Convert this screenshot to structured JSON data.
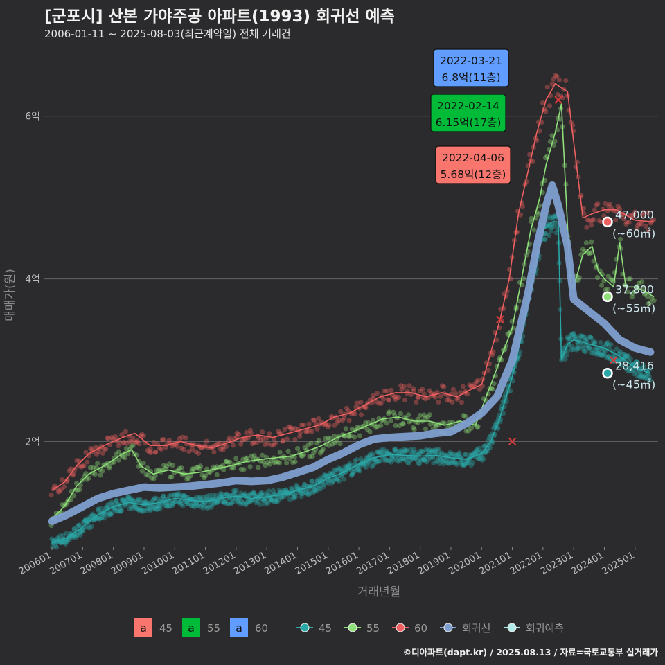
{
  "title": "[군포시] 산본 가야주공 아파트(1993) 회귀선 예측",
  "subtitle": "2006-01-11 ~ 2025-08-03(최근계약일) 전체 거래건",
  "caption": "©디아파트(dapt.kr) / 2025.08.13 / 자료=국토교통부 실거래가",
  "colors": {
    "s45": "#2aa8a8",
    "s55": "#8fe07a",
    "s60": "#f06060",
    "reg": "#7f9fd0",
    "pred": "#b0ecea",
    "box45": "#f8766d",
    "box55": "#00ba38",
    "box60": "#619cff"
  },
  "chart_data": {
    "type": "scatter",
    "xlabel": "거래년월",
    "ylabel": "매매가(원)",
    "x_tick_labels": [
      "200601",
      "200701",
      "200801",
      "200901",
      "201001",
      "201101",
      "201201",
      "201301",
      "201401",
      "201501",
      "201601",
      "201701",
      "201801",
      "201901",
      "202001",
      "202101",
      "202201",
      "202301",
      "202401",
      "202501"
    ],
    "y_ticks": [
      {
        "value": 2,
        "label": "2억"
      },
      {
        "value": 4,
        "label": "4억"
      },
      {
        "value": 6,
        "label": "6억"
      }
    ],
    "ylim": [
      0.7,
      6.9
    ],
    "xlim": [
      2005.75,
      2025.75
    ],
    "grid": "horizontal",
    "series": [
      {
        "name": "45",
        "key": "s45",
        "line": [
          [
            2006.0,
            0.75
          ],
          [
            2006.5,
            0.82
          ],
          [
            2007.0,
            0.95
          ],
          [
            2007.5,
            1.1
          ],
          [
            2008.0,
            1.2
          ],
          [
            2008.5,
            1.25
          ],
          [
            2009.0,
            1.22
          ],
          [
            2009.5,
            1.25
          ],
          [
            2010.0,
            1.3
          ],
          [
            2010.5,
            1.28
          ],
          [
            2011.0,
            1.26
          ],
          [
            2011.5,
            1.3
          ],
          [
            2012.0,
            1.33
          ],
          [
            2012.5,
            1.3
          ],
          [
            2013.0,
            1.32
          ],
          [
            2013.5,
            1.35
          ],
          [
            2014.0,
            1.4
          ],
          [
            2014.5,
            1.45
          ],
          [
            2015.0,
            1.55
          ],
          [
            2015.5,
            1.62
          ],
          [
            2016.0,
            1.72
          ],
          [
            2016.5,
            1.8
          ],
          [
            2017.0,
            1.84
          ],
          [
            2017.5,
            1.83
          ],
          [
            2018.0,
            1.82
          ],
          [
            2018.5,
            1.83
          ],
          [
            2019.0,
            1.8
          ],
          [
            2019.5,
            1.78
          ],
          [
            2020.0,
            1.85
          ],
          [
            2020.3,
            2.0
          ],
          [
            2020.6,
            2.3
          ],
          [
            2021.0,
            2.8
          ],
          [
            2021.3,
            3.3
          ],
          [
            2021.6,
            3.9
          ],
          [
            2022.0,
            4.6
          ],
          [
            2022.3,
            4.7
          ],
          [
            2022.5,
            4.7
          ],
          [
            2022.6,
            3.0
          ],
          [
            2022.8,
            3.2
          ],
          [
            2023.0,
            3.25
          ],
          [
            2023.5,
            3.2
          ],
          [
            2024.0,
            3.15
          ],
          [
            2024.5,
            3.05
          ],
          [
            2025.0,
            2.9
          ],
          [
            2025.5,
            2.84
          ]
        ]
      },
      {
        "name": "55",
        "key": "s55",
        "line": [
          [
            2006.0,
            1.05
          ],
          [
            2006.4,
            1.2
          ],
          [
            2006.8,
            1.45
          ],
          [
            2007.2,
            1.6
          ],
          [
            2007.7,
            1.7
          ],
          [
            2008.3,
            1.85
          ],
          [
            2008.6,
            1.9
          ],
          [
            2008.9,
            1.7
          ],
          [
            2009.3,
            1.6
          ],
          [
            2009.8,
            1.65
          ],
          [
            2010.3,
            1.6
          ],
          [
            2010.8,
            1.62
          ],
          [
            2011.3,
            1.66
          ],
          [
            2011.8,
            1.7
          ],
          [
            2012.3,
            1.75
          ],
          [
            2012.8,
            1.78
          ],
          [
            2013.3,
            1.8
          ],
          [
            2013.8,
            1.82
          ],
          [
            2014.3,
            1.88
          ],
          [
            2014.8,
            1.95
          ],
          [
            2015.3,
            2.05
          ],
          [
            2015.8,
            2.12
          ],
          [
            2016.3,
            2.2
          ],
          [
            2016.8,
            2.28
          ],
          [
            2017.3,
            2.3
          ],
          [
            2017.8,
            2.25
          ],
          [
            2018.3,
            2.25
          ],
          [
            2018.8,
            2.2
          ],
          [
            2019.3,
            2.25
          ],
          [
            2019.8,
            2.2
          ],
          [
            2020.2,
            2.6
          ],
          [
            2020.6,
            3.0
          ],
          [
            2021.0,
            3.4
          ],
          [
            2021.3,
            4.0
          ],
          [
            2021.6,
            4.6
          ],
          [
            2021.9,
            5.0
          ],
          [
            2022.1,
            5.4
          ],
          [
            2022.4,
            5.8
          ],
          [
            2022.6,
            6.15
          ],
          [
            2022.9,
            3.9
          ],
          [
            2023.0,
            3.9
          ],
          [
            2023.3,
            4.3
          ],
          [
            2023.6,
            4.4
          ],
          [
            2023.8,
            4.1
          ],
          [
            2024.0,
            4.0
          ],
          [
            2024.3,
            3.9
          ],
          [
            2024.5,
            4.45
          ],
          [
            2024.7,
            3.9
          ],
          [
            2025.0,
            3.9
          ],
          [
            2025.3,
            3.85
          ],
          [
            2025.6,
            3.78
          ]
        ]
      },
      {
        "name": "60",
        "key": "s60",
        "line": [
          [
            2006.0,
            1.4
          ],
          [
            2006.4,
            1.5
          ],
          [
            2006.8,
            1.7
          ],
          [
            2007.2,
            1.85
          ],
          [
            2007.7,
            1.95
          ],
          [
            2008.3,
            2.05
          ],
          [
            2008.7,
            2.1
          ],
          [
            2009.2,
            1.95
          ],
          [
            2009.7,
            1.95
          ],
          [
            2010.2,
            2.0
          ],
          [
            2010.7,
            1.95
          ],
          [
            2011.2,
            1.92
          ],
          [
            2011.7,
            1.98
          ],
          [
            2012.2,
            2.05
          ],
          [
            2012.7,
            2.08
          ],
          [
            2013.2,
            2.05
          ],
          [
            2013.7,
            2.1
          ],
          [
            2014.2,
            2.15
          ],
          [
            2014.7,
            2.2
          ],
          [
            2015.2,
            2.3
          ],
          [
            2015.7,
            2.35
          ],
          [
            2016.2,
            2.45
          ],
          [
            2016.7,
            2.55
          ],
          [
            2017.2,
            2.6
          ],
          [
            2017.7,
            2.6
          ],
          [
            2018.2,
            2.55
          ],
          [
            2018.7,
            2.6
          ],
          [
            2019.2,
            2.55
          ],
          [
            2019.7,
            2.65
          ],
          [
            2020.0,
            2.7
          ],
          [
            2020.3,
            3.1
          ],
          [
            2020.6,
            3.5
          ],
          [
            2020.9,
            4.0
          ],
          [
            2021.2,
            4.8
          ],
          [
            2021.5,
            5.3
          ],
          [
            2021.8,
            5.8
          ],
          [
            2022.1,
            6.2
          ],
          [
            2022.4,
            6.4
          ],
          [
            2022.6,
            6.35
          ],
          [
            2022.8,
            6.3
          ],
          [
            2023.3,
            4.75
          ],
          [
            2023.6,
            4.8
          ],
          [
            2024.0,
            4.85
          ],
          [
            2024.4,
            4.85
          ],
          [
            2025.0,
            4.72
          ],
          [
            2025.6,
            4.7
          ]
        ]
      },
      {
        "name": "회귀선",
        "key": "reg",
        "line": [
          [
            2006.0,
            1.02
          ],
          [
            2006.5,
            1.1
          ],
          [
            2007.0,
            1.2
          ],
          [
            2007.5,
            1.3
          ],
          [
            2008.0,
            1.36
          ],
          [
            2008.5,
            1.4
          ],
          [
            2009.0,
            1.44
          ],
          [
            2009.5,
            1.43
          ],
          [
            2010.0,
            1.44
          ],
          [
            2010.5,
            1.45
          ],
          [
            2011.0,
            1.47
          ],
          [
            2011.5,
            1.49
          ],
          [
            2012.0,
            1.52
          ],
          [
            2012.5,
            1.51
          ],
          [
            2013.0,
            1.52
          ],
          [
            2013.5,
            1.56
          ],
          [
            2014.0,
            1.62
          ],
          [
            2014.5,
            1.68
          ],
          [
            2015.0,
            1.78
          ],
          [
            2015.5,
            1.86
          ],
          [
            2016.0,
            1.96
          ],
          [
            2016.5,
            2.03
          ],
          [
            2017.0,
            2.05
          ],
          [
            2017.5,
            2.06
          ],
          [
            2018.0,
            2.07
          ],
          [
            2018.5,
            2.1
          ],
          [
            2019.0,
            2.12
          ],
          [
            2019.5,
            2.22
          ],
          [
            2020.0,
            2.35
          ],
          [
            2020.5,
            2.55
          ],
          [
            2021.0,
            3.0
          ],
          [
            2021.5,
            3.8
          ],
          [
            2021.8,
            4.4
          ],
          [
            2022.1,
            4.9
          ],
          [
            2022.3,
            5.15
          ],
          [
            2022.5,
            4.9
          ],
          [
            2022.8,
            4.4
          ],
          [
            2023.0,
            3.75
          ],
          [
            2023.5,
            3.6
          ],
          [
            2024.0,
            3.45
          ],
          [
            2024.5,
            3.25
          ],
          [
            2025.0,
            3.15
          ],
          [
            2025.5,
            3.1
          ]
        ]
      }
    ],
    "callouts": [
      {
        "date": "2022-03-21",
        "price": "6.8억(11층)",
        "color_key": "box60"
      },
      {
        "date": "2022-02-14",
        "price": "6.15억(17층)",
        "color_key": "box55"
      },
      {
        "date": "2022-04-06",
        "price": "5.68억(12층)",
        "color_key": "box45"
      }
    ],
    "end_labels": [
      {
        "value": "47,000",
        "area": "(~60㎡)",
        "y": 4.7,
        "color_key": "s60"
      },
      {
        "value": "37,800",
        "area": "(~55㎡)",
        "y": 3.78,
        "color_key": "s55"
      },
      {
        "value": "28,416",
        "area": "(~45㎡)",
        "y": 2.84,
        "color_key": "s45"
      }
    ],
    "legend": {
      "position": "bottom",
      "fill_items": [
        {
          "glyph": "a",
          "label": "45",
          "color_key": "box45"
        },
        {
          "glyph": "a",
          "label": "55",
          "color_key": "box55"
        },
        {
          "glyph": "a",
          "label": "60",
          "color_key": "box60"
        }
      ],
      "point_items": [
        {
          "label": "45",
          "color_key": "s45"
        },
        {
          "label": "55",
          "color_key": "s55"
        },
        {
          "label": "60",
          "color_key": "s60"
        },
        {
          "label": "회귀선",
          "color_key": "reg"
        },
        {
          "label": "회귀예측",
          "color_key": "pred"
        }
      ]
    }
  }
}
